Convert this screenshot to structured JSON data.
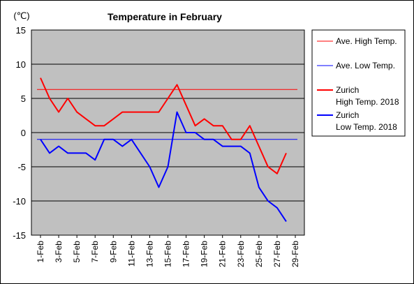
{
  "chart_data": {
    "type": "line",
    "title": "Temperature in February",
    "y_unit": "(℃)",
    "ylim": [
      -15,
      15
    ],
    "y_ticks": [
      15,
      10,
      5,
      0,
      -5,
      -10,
      -15
    ],
    "x_tick_labels": [
      "1-Feb",
      "3-Feb",
      "5-Feb",
      "7-Feb",
      "9-Feb",
      "11-Feb",
      "13-Feb",
      "15-Feb",
      "17-Feb",
      "19-Feb",
      "21-Feb",
      "23-Feb",
      "25-Feb",
      "27-Feb",
      "29-Feb"
    ],
    "x_days": [
      1,
      2,
      3,
      4,
      5,
      6,
      7,
      8,
      9,
      10,
      11,
      12,
      13,
      14,
      15,
      16,
      17,
      18,
      19,
      20,
      21,
      22,
      23,
      24,
      25,
      26,
      27,
      28
    ],
    "grid": true,
    "legend_position": "right",
    "series": [
      {
        "name": "Ave. High Temp.",
        "color": "#ff0000",
        "style": "reference",
        "values": [
          6.3,
          6.3
        ]
      },
      {
        "name": "Ave. Low Temp.",
        "color": "#0000ff",
        "style": "reference",
        "values": [
          -1,
          -1
        ]
      },
      {
        "name": "Zurich\nHigh Temp. 2018",
        "color": "#ff0000",
        "style": "main",
        "values": [
          8,
          5,
          3,
          5,
          3,
          2,
          1,
          1,
          2,
          3,
          3,
          3,
          3,
          3,
          5,
          7,
          4,
          1,
          2,
          1,
          1,
          -1,
          -1,
          1,
          -2,
          -5,
          -6,
          -3
        ]
      },
      {
        "name": "Zurich\nLow Temp. 2018",
        "color": "#0000ff",
        "style": "main",
        "values": [
          -1,
          -3,
          -2,
          -3,
          -3,
          -3,
          -4,
          -1,
          -1,
          -2,
          -1,
          -3,
          -5,
          -8,
          -5,
          3,
          0,
          0,
          -1,
          -1,
          -2,
          -2,
          -2,
          -3,
          -8,
          -10,
          -11,
          -13
        ]
      }
    ]
  }
}
